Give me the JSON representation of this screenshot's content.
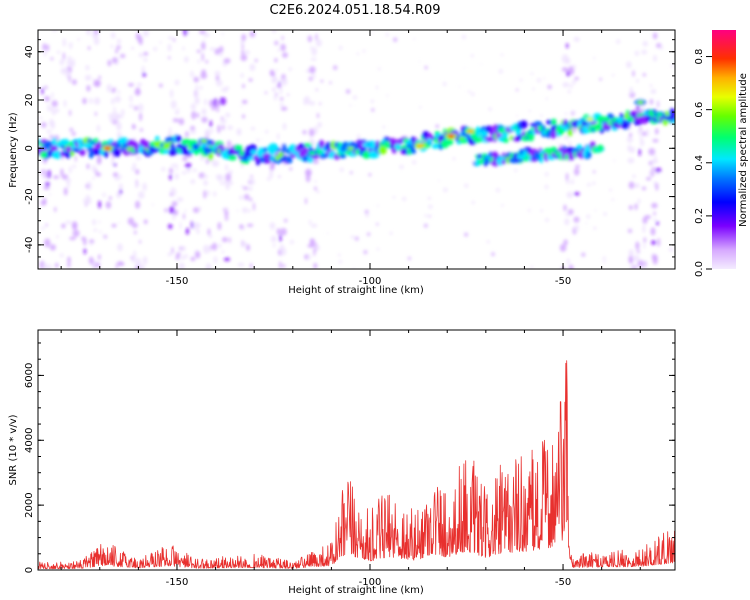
{
  "title": "C2E6.2024.051.18.54.R09",
  "chart_data": [
    {
      "type": "heatmap",
      "xlabel": "Height of straight line (km)",
      "ylabel": "Frequency (Hz)",
      "xlim": [
        -186,
        -21
      ],
      "ylim": [
        -50,
        49
      ],
      "xticks": [
        -150,
        -100,
        -50
      ],
      "yticks": [
        -40,
        -20,
        0,
        20,
        40
      ],
      "colorbar": {
        "label": "Normalized spectral amplitude",
        "range": [
          0,
          0.9
        ],
        "ticks": [
          0.0,
          0.2,
          0.4,
          0.6,
          0.8
        ],
        "colors": [
          "#e8d8ff",
          "#9a2cf0",
          "#3b00ff",
          "#0050ff",
          "#00e0ff",
          "#00ff66",
          "#aaff00",
          "#ffe000",
          "#ff8000",
          "#ff0000",
          "#ff0080"
        ]
      },
      "ridge": [
        {
          "x": -186,
          "y": 0
        },
        {
          "x": -150,
          "y": 1
        },
        {
          "x": -130,
          "y": -3
        },
        {
          "x": -110,
          "y": -1
        },
        {
          "x": -90,
          "y": 1
        },
        {
          "x": -78,
          "y": 5
        },
        {
          "x": -65,
          "y": 6
        },
        {
          "x": -50,
          "y": 9
        },
        {
          "x": -40,
          "y": 10
        },
        {
          "x": -21,
          "y": 14
        }
      ],
      "lower_branch": [
        {
          "x": -72,
          "y": -5
        },
        {
          "x": -60,
          "y": -3
        },
        {
          "x": -48,
          "y": -2
        },
        {
          "x": -40,
          "y": 0
        }
      ],
      "hotspots": [
        {
          "x": -168,
          "y": 0,
          "v": 0.85
        },
        {
          "x": -143,
          "y": 3,
          "v": 0.6
        },
        {
          "x": -115,
          "y": -2,
          "v": 0.55
        },
        {
          "x": -105,
          "y": 0,
          "v": 0.6
        },
        {
          "x": -87,
          "y": 1,
          "v": 0.8
        },
        {
          "x": -79,
          "y": 5,
          "v": 0.85
        },
        {
          "x": -74,
          "y": 7,
          "v": 0.75
        },
        {
          "x": -43,
          "y": 12,
          "v": 0.7
        },
        {
          "x": -30,
          "y": 19,
          "v": 0.6
        },
        {
          "x": -25,
          "y": 14,
          "v": 0.55
        }
      ]
    },
    {
      "type": "line",
      "xlabel": "Height of straight line (km)",
      "ylabel": "SNR (10 * v/v)",
      "xlim": [
        -186,
        -21
      ],
      "ylim": [
        0,
        7400
      ],
      "xticks": [
        -150,
        -100,
        -50
      ],
      "yticks": [
        0,
        2000,
        4000,
        6000
      ],
      "color": "#e8302e",
      "envelope": [
        {
          "x": -186,
          "y": 250
        },
        {
          "x": -175,
          "y": 300
        },
        {
          "x": -169,
          "y": 900
        },
        {
          "x": -160,
          "y": 400
        },
        {
          "x": -152,
          "y": 850
        },
        {
          "x": -145,
          "y": 350
        },
        {
          "x": -130,
          "y": 500
        },
        {
          "x": -120,
          "y": 300
        },
        {
          "x": -110,
          "y": 900
        },
        {
          "x": -106,
          "y": 3200
        },
        {
          "x": -100,
          "y": 1800
        },
        {
          "x": -95,
          "y": 2700
        },
        {
          "x": -88,
          "y": 1900
        },
        {
          "x": -84,
          "y": 3300
        },
        {
          "x": -80,
          "y": 2600
        },
        {
          "x": -75,
          "y": 3900
        },
        {
          "x": -70,
          "y": 2500
        },
        {
          "x": -65,
          "y": 3500
        },
        {
          "x": -60,
          "y": 3800
        },
        {
          "x": -55,
          "y": 4200
        },
        {
          "x": -51,
          "y": 5200
        },
        {
          "x": -49,
          "y": 7400
        },
        {
          "x": -48,
          "y": 500
        },
        {
          "x": -40,
          "y": 600
        },
        {
          "x": -30,
          "y": 700
        },
        {
          "x": -21,
          "y": 1500
        }
      ]
    }
  ]
}
